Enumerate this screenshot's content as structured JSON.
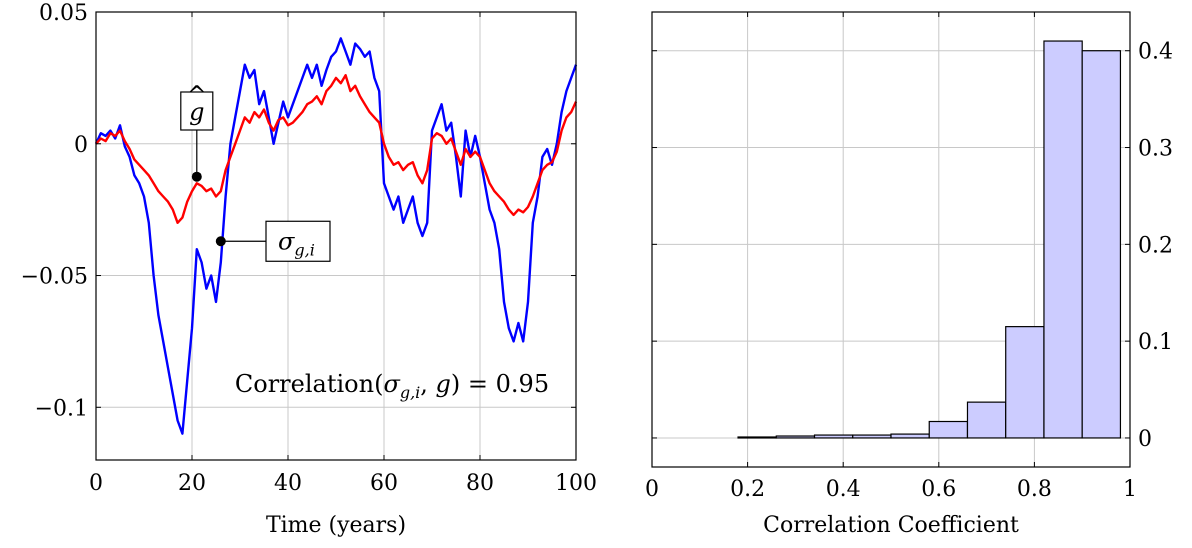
{
  "chart_data": [
    {
      "type": "line",
      "xlabel": "Time (years)",
      "ylabel": "",
      "xlim": [
        0,
        100
      ],
      "ylim": [
        -0.12,
        0.05
      ],
      "xticks": [
        0,
        20,
        40,
        60,
        80,
        100
      ],
      "xtick_labels": [
        "0",
        "20",
        "40",
        "60",
        "80",
        "100"
      ],
      "yticks": [
        -0.1,
        -0.05,
        0,
        0.05
      ],
      "ytick_labels": [
        "−0.1",
        "−0.05",
        "0",
        "0.05"
      ],
      "grid": true,
      "series": [
        {
          "name": "σg,i",
          "color": "#0000ff",
          "x": [
            0,
            1,
            2,
            3,
            4,
            5,
            6,
            7,
            8,
            9,
            10,
            11,
            12,
            13,
            14,
            15,
            16,
            17,
            18,
            19,
            20,
            21,
            22,
            23,
            24,
            25,
            26,
            27,
            28,
            29,
            30,
            31,
            32,
            33,
            34,
            35,
            36,
            37,
            38,
            39,
            40,
            41,
            42,
            43,
            44,
            45,
            46,
            47,
            48,
            49,
            50,
            51,
            52,
            53,
            54,
            55,
            56,
            57,
            58,
            59,
            60,
            61,
            62,
            63,
            64,
            65,
            66,
            67,
            68,
            69,
            70,
            71,
            72,
            73,
            74,
            75,
            76,
            77,
            78,
            79,
            80,
            81,
            82,
            83,
            84,
            85,
            86,
            87,
            88,
            89,
            90,
            91,
            92,
            93,
            94,
            95,
            96,
            97,
            98,
            99,
            100
          ],
          "y": [
            0.0,
            0.004,
            0.003,
            0.005,
            0.002,
            0.007,
            -0.001,
            -0.005,
            -0.012,
            -0.015,
            -0.02,
            -0.03,
            -0.05,
            -0.065,
            -0.075,
            -0.085,
            -0.095,
            -0.105,
            -0.11,
            -0.09,
            -0.07,
            -0.04,
            -0.045,
            -0.055,
            -0.05,
            -0.06,
            -0.045,
            -0.02,
            0.0,
            0.01,
            0.02,
            0.03,
            0.025,
            0.028,
            0.015,
            0.02,
            0.01,
            0.0,
            0.008,
            0.016,
            0.01,
            0.015,
            0.02,
            0.025,
            0.03,
            0.025,
            0.03,
            0.022,
            0.028,
            0.033,
            0.035,
            0.04,
            0.035,
            0.03,
            0.038,
            0.036,
            0.033,
            0.035,
            0.025,
            0.02,
            -0.015,
            -0.02,
            -0.025,
            -0.02,
            -0.03,
            -0.025,
            -0.02,
            -0.03,
            -0.035,
            -0.03,
            0.005,
            0.01,
            0.015,
            0.005,
            0.008,
            -0.005,
            -0.02,
            0.005,
            -0.005,
            0.003,
            -0.005,
            -0.015,
            -0.025,
            -0.03,
            -0.04,
            -0.06,
            -0.07,
            -0.075,
            -0.068,
            -0.075,
            -0.06,
            -0.03,
            -0.02,
            -0.005,
            -0.002,
            -0.008,
            0.0,
            0.012,
            0.02,
            0.025,
            0.03
          ]
        },
        {
          "name": "ĝ",
          "color": "#ff0000",
          "x": [
            0,
            1,
            2,
            3,
            4,
            5,
            6,
            7,
            8,
            9,
            10,
            11,
            12,
            13,
            14,
            15,
            16,
            17,
            18,
            19,
            20,
            21,
            22,
            23,
            24,
            25,
            26,
            27,
            28,
            29,
            30,
            31,
            32,
            33,
            34,
            35,
            36,
            37,
            38,
            39,
            40,
            41,
            42,
            43,
            44,
            45,
            46,
            47,
            48,
            49,
            50,
            51,
            52,
            53,
            54,
            55,
            56,
            57,
            58,
            59,
            60,
            61,
            62,
            63,
            64,
            65,
            66,
            67,
            68,
            69,
            70,
            71,
            72,
            73,
            74,
            75,
            76,
            77,
            78,
            79,
            80,
            81,
            82,
            83,
            84,
            85,
            86,
            87,
            88,
            89,
            90,
            91,
            92,
            93,
            94,
            95,
            96,
            97,
            98,
            99,
            100
          ],
          "y": [
            0.0,
            0.002,
            0.001,
            0.004,
            0.003,
            0.005,
            0.001,
            -0.002,
            -0.006,
            -0.008,
            -0.01,
            -0.012,
            -0.015,
            -0.018,
            -0.02,
            -0.022,
            -0.025,
            -0.03,
            -0.028,
            -0.022,
            -0.018,
            -0.015,
            -0.016,
            -0.018,
            -0.017,
            -0.02,
            -0.018,
            -0.01,
            -0.005,
            0.0,
            0.005,
            0.01,
            0.008,
            0.012,
            0.01,
            0.013,
            0.008,
            0.005,
            0.009,
            0.01,
            0.007,
            0.008,
            0.01,
            0.012,
            0.015,
            0.016,
            0.018,
            0.015,
            0.02,
            0.022,
            0.025,
            0.023,
            0.026,
            0.02,
            0.022,
            0.018,
            0.015,
            0.012,
            0.01,
            0.008,
            0.0,
            -0.005,
            -0.008,
            -0.007,
            -0.01,
            -0.008,
            -0.007,
            -0.012,
            -0.015,
            -0.01,
            0.002,
            0.004,
            0.003,
            0.0,
            0.002,
            -0.003,
            -0.008,
            -0.002,
            -0.005,
            -0.003,
            -0.005,
            -0.01,
            -0.015,
            -0.018,
            -0.02,
            -0.022,
            -0.025,
            -0.027,
            -0.025,
            -0.026,
            -0.024,
            -0.02,
            -0.015,
            -0.01,
            -0.008,
            -0.007,
            -0.003,
            0.005,
            0.01,
            0.012,
            0.016
          ]
        }
      ],
      "annotations": [
        {
          "base": "g",
          "hat": "^",
          "x": 21,
          "y": -0.0125
        },
        {
          "base": "σ",
          "subscript": "g,i",
          "x": 26,
          "y": -0.037
        }
      ],
      "correlation_text": {
        "prefix": "Correlation(",
        "sigma": "σ",
        "sigma_sub": "g,i",
        "sep": ", ",
        "ghat": "g",
        "hat": "^",
        "suffix": ") = 0.95"
      }
    },
    {
      "type": "bar",
      "xlabel": "Correlation Coefficient",
      "ylabel": "",
      "xlim": [
        0,
        1
      ],
      "ylim": [
        -0.03,
        0.44
      ],
      "xticks": [
        0,
        0.2,
        0.4,
        0.6,
        0.8,
        1
      ],
      "xtick_labels": [
        "0",
        "0.2",
        "0.4",
        "0.6",
        "0.8",
        "1"
      ],
      "yticks": [
        0,
        0.1,
        0.2,
        0.3,
        0.4
      ],
      "ytick_labels": [
        "0",
        "0.1",
        "0.2",
        "0.3",
        "0.4"
      ],
      "y_axis_position": "right",
      "grid": true,
      "bar_fill": "#ccccff",
      "bar_edge": "#000000",
      "bins": [
        {
          "x0": 0.18,
          "x1": 0.26,
          "value": 0.001
        },
        {
          "x0": 0.26,
          "x1": 0.34,
          "value": 0.002
        },
        {
          "x0": 0.34,
          "x1": 0.42,
          "value": 0.003
        },
        {
          "x0": 0.42,
          "x1": 0.5,
          "value": 0.003
        },
        {
          "x0": 0.5,
          "x1": 0.58,
          "value": 0.004
        },
        {
          "x0": 0.58,
          "x1": 0.66,
          "value": 0.017
        },
        {
          "x0": 0.66,
          "x1": 0.74,
          "value": 0.037
        },
        {
          "x0": 0.74,
          "x1": 0.82,
          "value": 0.115
        },
        {
          "x0": 0.82,
          "x1": 0.9,
          "value": 0.41
        },
        {
          "x0": 0.9,
          "x1": 0.98,
          "value": 0.4
        }
      ]
    }
  ]
}
